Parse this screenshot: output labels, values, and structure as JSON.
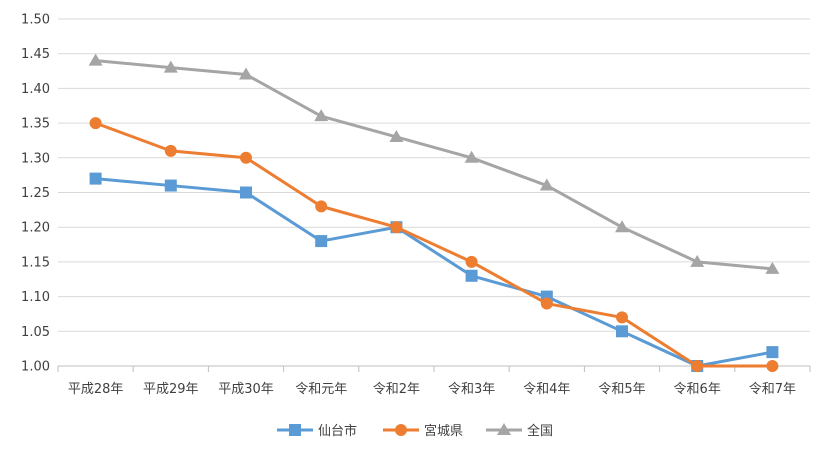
{
  "chart_data": {
    "type": "line",
    "title": "",
    "xlabel": "",
    "ylabel": "",
    "categories": [
      "平成28年",
      "平成29年",
      "平成30年",
      "令和元年",
      "令和2年",
      "令和3年",
      "令和4年",
      "令和5年",
      "令和6年",
      "令和7年"
    ],
    "ylim": [
      1.0,
      1.5
    ],
    "yticks": [
      "1.00",
      "1.05",
      "1.10",
      "1.15",
      "1.20",
      "1.25",
      "1.30",
      "1.35",
      "1.40",
      "1.45",
      "1.50"
    ],
    "grid": true,
    "legend_position": "bottom",
    "series": [
      {
        "name": "仙台市",
        "color": "#5B9BD5",
        "marker": "square",
        "values": [
          1.27,
          1.26,
          1.25,
          1.18,
          1.2,
          1.13,
          1.1,
          1.05,
          1.0,
          1.02
        ]
      },
      {
        "name": "宮城県",
        "color": "#ED7D31",
        "marker": "circle",
        "values": [
          1.35,
          1.31,
          1.3,
          1.23,
          1.2,
          1.15,
          1.09,
          1.07,
          1.0,
          1.0
        ]
      },
      {
        "name": "全国",
        "color": "#A5A5A5",
        "marker": "triangle",
        "values": [
          1.44,
          1.43,
          1.42,
          1.36,
          1.33,
          1.3,
          1.26,
          1.2,
          1.15,
          1.14
        ]
      }
    ]
  }
}
